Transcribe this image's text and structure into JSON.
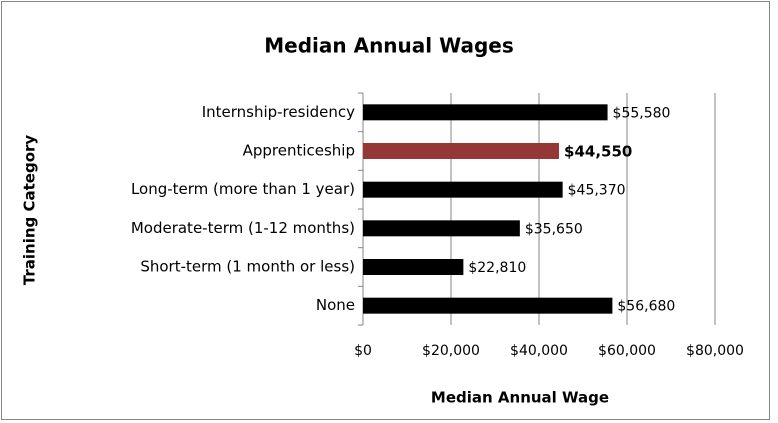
{
  "chart_data": {
    "type": "barh",
    "title": "Median Annual Wages",
    "xlabel": "Median Annual Wage",
    "ylabel": "Training Category",
    "categories": [
      "Internship-residency",
      "Apprenticeship",
      "Long-term (more than 1 year)",
      "Moderate-term (1-12 months)",
      "Short-term (1 month or less)",
      "None"
    ],
    "values": [
      55580,
      44550,
      45370,
      35650,
      22810,
      56680
    ],
    "value_labels": [
      "$55,580",
      "$44,550",
      "$45,370",
      "$35,650",
      "$22,810",
      "$56,680"
    ],
    "colors": [
      "#000000",
      "#953735",
      "#000000",
      "#000000",
      "#000000",
      "#000000"
    ],
    "bold_value_labels": [
      false,
      true,
      false,
      false,
      false,
      false
    ],
    "xlim": [
      0,
      80000
    ],
    "xticks": [
      {
        "value": 0,
        "label": "$0"
      },
      {
        "value": 20000,
        "label": "$20,000"
      },
      {
        "value": 40000,
        "label": "$40,000"
      },
      {
        "value": 60000,
        "label": "$60,000"
      },
      {
        "value": 80000,
        "label": "$80,000"
      }
    ],
    "grid": true
  }
}
